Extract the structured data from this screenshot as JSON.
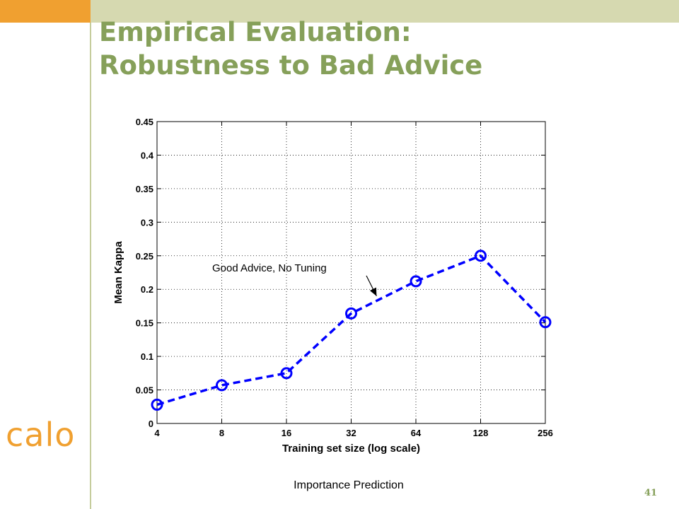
{
  "slide": {
    "title_line1": "Empirical Evaluation:",
    "title_line2": "Robustness to Bad Advice",
    "logo_text": "calo",
    "caption": "Importance Prediction",
    "page_number": "41",
    "colors": {
      "title": "#86a05a",
      "accent_orange": "#f0a030",
      "band_green": "#d6d9b0",
      "series_blue": "#0000ff"
    }
  },
  "chart_data": {
    "type": "line",
    "x_scale": "log2",
    "xlabel": "Training set size (log scale)",
    "ylabel": "Mean Kappa",
    "x_ticks": [
      4,
      8,
      16,
      32,
      64,
      128,
      256
    ],
    "x_tick_labels": [
      "4",
      "8",
      "16",
      "32",
      "64",
      "128",
      "256"
    ],
    "xlim": [
      4,
      256
    ],
    "y_ticks": [
      0,
      0.05,
      0.1,
      0.15,
      0.2,
      0.25,
      0.3,
      0.35,
      0.4,
      0.45
    ],
    "y_tick_labels": [
      "0",
      "0.05",
      "0.1",
      "0.15",
      "0.2",
      "0.25",
      "0.3",
      "0.35",
      "0.4",
      "0.45"
    ],
    "ylim": [
      0,
      0.45
    ],
    "grid": true,
    "series": [
      {
        "x": [
          4,
          8,
          16,
          32,
          64,
          128,
          256
        ],
        "y": [
          0.028,
          0.057,
          0.075,
          0.164,
          0.212,
          0.25,
          0.151
        ],
        "line_style": "dashed",
        "marker": "circle",
        "color": "#0000ff"
      }
    ],
    "annotations": [
      {
        "text": "Good Advice, No Tuning",
        "arrow_to_x": 42,
        "arrow_to_y": 0.19
      }
    ]
  }
}
